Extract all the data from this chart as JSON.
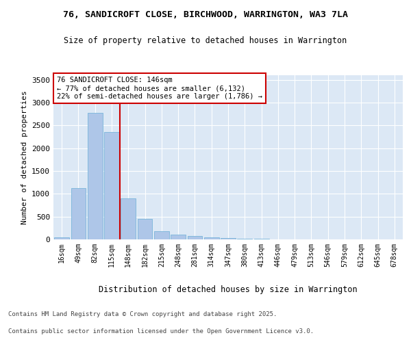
{
  "title1": "76, SANDICROFT CLOSE, BIRCHWOOD, WARRINGTON, WA3 7LA",
  "title2": "Size of property relative to detached houses in Warrington",
  "xlabel": "Distribution of detached houses by size in Warrington",
  "ylabel": "Number of detached properties",
  "categories": [
    "16sqm",
    "49sqm",
    "82sqm",
    "115sqm",
    "148sqm",
    "182sqm",
    "215sqm",
    "248sqm",
    "281sqm",
    "314sqm",
    "347sqm",
    "380sqm",
    "413sqm",
    "446sqm",
    "479sqm",
    "513sqm",
    "546sqm",
    "579sqm",
    "612sqm",
    "645sqm",
    "678sqm"
  ],
  "values": [
    50,
    1120,
    2780,
    2350,
    900,
    450,
    185,
    105,
    70,
    45,
    25,
    15,
    8,
    5,
    3,
    2,
    1,
    1,
    0,
    0,
    0
  ],
  "bar_color": "#aec6e8",
  "bar_edgecolor": "#6aaed6",
  "vline_color": "#cc0000",
  "vline_pos": 3.5,
  "annotation_text": "76 SANDICROFT CLOSE: 146sqm\n← 77% of detached houses are smaller (6,132)\n22% of semi-detached houses are larger (1,786) →",
  "annotation_box_color": "#cc0000",
  "ylim": [
    0,
    3600
  ],
  "yticks": [
    0,
    500,
    1000,
    1500,
    2000,
    2500,
    3000,
    3500
  ],
  "bg_color": "#dce8f5",
  "grid_color": "#ffffff",
  "footer_line1": "Contains HM Land Registry data © Crown copyright and database right 2025.",
  "footer_line2": "Contains public sector information licensed under the Open Government Licence v3.0."
}
